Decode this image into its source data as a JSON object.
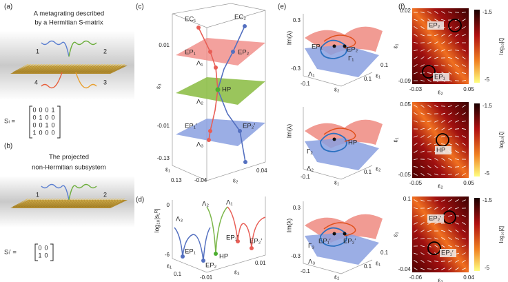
{
  "panel_a": {
    "label": "(a)",
    "title_lines": [
      "A metagrating described",
      "by a Hermitian S-matrix"
    ],
    "ports": [
      "1",
      "2",
      "3",
      "4"
    ],
    "matrix_label": "Sₗ =",
    "matrix_rows": [
      [
        "0",
        "0",
        "0",
        "1"
      ],
      [
        "0",
        "1",
        "0",
        "0"
      ],
      [
        "0",
        "0",
        "1",
        "0"
      ],
      [
        "1",
        "0",
        "0",
        "0"
      ]
    ]
  },
  "panel_b": {
    "label": "(b)",
    "title_lines": [
      "The projected",
      "non-Hermitian subsystem"
    ],
    "ports": [
      "1",
      "2"
    ],
    "matrix_label": "Sₗ′ =",
    "matrix_rows": [
      [
        "0",
        "0"
      ],
      [
        "1",
        "0"
      ]
    ]
  },
  "panel_c": {
    "label": "(c)",
    "y_label": "ε₃",
    "y_ticks": [
      "0.01",
      "-0.01",
      "-0.13"
    ],
    "x_ticks": [
      "0.13",
      "-0.04",
      "0.04"
    ],
    "x_labels": [
      "ε₁",
      "ε₂"
    ],
    "points": [
      "EC₁",
      "EC₂",
      "EP₁",
      "EP₂",
      "Λ₁",
      "HP",
      "Λ₂",
      "EP₁′",
      "EP₂′",
      "Λ₃"
    ]
  },
  "panel_d": {
    "label": "(d)",
    "y_label": "log₁₀|s₁ᴿ|",
    "y_ticks": [
      "0",
      "-6"
    ],
    "x_ticks": [
      "0.1",
      "-0.01",
      "0.01"
    ],
    "x_labels": [
      "ε₁",
      "ε₃"
    ],
    "labels": [
      "Λ₃",
      "Λ₂",
      "Λ₁",
      "EP₁′",
      "EP₂′",
      "HP",
      "EP₁",
      "EP₂"
    ]
  },
  "panel_e": {
    "label": "(e)",
    "subpanels": [
      {
        "y_label": "Im(λ)",
        "y_ticks": [
          "0.3",
          "-0.3"
        ],
        "x_ticks": [
          "-0.1",
          "0.1",
          "0.1"
        ],
        "x_labels": [
          "ε₂",
          "ε₁"
        ],
        "labels": [
          "EP₁",
          "EP₂",
          "Γ₁",
          "Λ₁"
        ]
      },
      {
        "y_label": "Im(λ)",
        "x_ticks": [
          "-0.1",
          "0.1"
        ],
        "x_labels": [
          "ε₁",
          "ε₂"
        ],
        "labels": [
          "Γ₂",
          "HP",
          "Λ₂"
        ]
      },
      {
        "y_label": "Im(λ)",
        "y_ticks": [
          "0.3",
          "-0.3"
        ],
        "x_ticks": [
          "-0.1",
          "0.1",
          "0.1"
        ],
        "x_labels": [
          "ε₂",
          "ε₁"
        ],
        "labels": [
          "Γ₃",
          "EP₁′",
          "EP₂′",
          "Λ₃"
        ]
      }
    ]
  },
  "panel_f": {
    "label": "(f)",
    "colorbar_label": "log₁₀|ζ|",
    "colorbar_ticks": [
      "-1.5",
      "-5"
    ],
    "subpanels": [
      {
        "y_label": "ε₁",
        "x_label": "ε₂",
        "y_ticks": [
          "0.02",
          "-0.09"
        ],
        "x_ticks": [
          "-0.03",
          "0.05"
        ],
        "labels": [
          "EP₂",
          "EP₁"
        ]
      },
      {
        "y_label": "ε₁",
        "x_label": "ε₂",
        "y_ticks": [
          "0.05",
          "-0.05"
        ],
        "x_ticks": [
          "-0.05",
          "0.05"
        ],
        "labels": [
          "HP"
        ]
      },
      {
        "y_label": "ε₁",
        "x_label": "ε₂",
        "y_ticks": [
          "0.1",
          "-0.04"
        ],
        "x_ticks": [
          "-0.06",
          "0.04"
        ],
        "labels": [
          "EP₂′",
          "EP₁′"
        ]
      }
    ]
  }
}
